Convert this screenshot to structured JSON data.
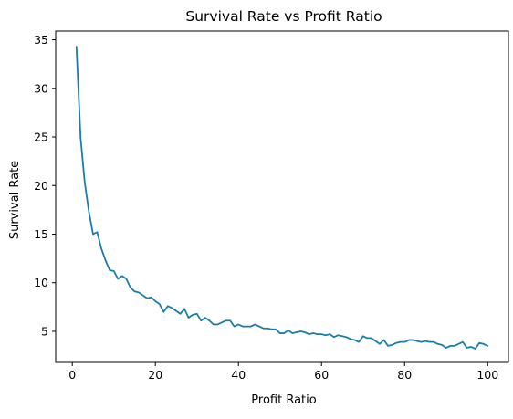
{
  "chart_data": {
    "type": "line",
    "title": "Survival Rate vs Profit Ratio",
    "xlabel": "Profit Ratio",
    "ylabel": "Survival Rate",
    "xlim": [
      -4.0,
      105.0
    ],
    "ylim": [
      1.8,
      35.9
    ],
    "xticks": [
      0,
      20,
      40,
      60,
      80,
      100
    ],
    "yticks": [
      5,
      10,
      15,
      20,
      25,
      30,
      35
    ],
    "grid": false,
    "legend": "none",
    "series": [
      {
        "color": "#1a7ea8",
        "x": [
          1,
          2,
          3,
          4,
          5,
          6,
          7,
          8,
          9,
          10,
          11,
          12,
          13,
          14,
          15,
          16,
          17,
          18,
          19,
          20,
          21,
          22,
          23,
          24,
          25,
          26,
          27,
          28,
          29,
          30,
          31,
          32,
          33,
          34,
          35,
          36,
          37,
          38,
          39,
          40,
          41,
          42,
          43,
          44,
          45,
          46,
          47,
          48,
          49,
          50,
          51,
          52,
          53,
          54,
          55,
          56,
          57,
          58,
          59,
          60,
          61,
          62,
          63,
          64,
          65,
          66,
          67,
          68,
          69,
          70,
          71,
          72,
          73,
          74,
          75,
          76,
          77,
          78,
          79,
          80,
          81,
          82,
          83,
          84,
          85,
          86,
          87,
          88,
          89,
          90,
          91,
          92,
          93,
          94,
          95,
          96,
          97,
          98,
          99,
          100
        ],
        "y": [
          34.3,
          24.9,
          20.3,
          17.3,
          15.0,
          15.2,
          13.5,
          12.3,
          11.3,
          11.2,
          10.4,
          10.7,
          10.4,
          9.5,
          9.1,
          9.0,
          8.7,
          8.4,
          8.5,
          8.1,
          7.8,
          7.0,
          7.6,
          7.4,
          7.1,
          6.8,
          7.3,
          6.4,
          6.7,
          6.8,
          6.1,
          6.4,
          6.1,
          5.7,
          5.7,
          5.9,
          6.1,
          6.1,
          5.5,
          5.7,
          5.5,
          5.5,
          5.5,
          5.7,
          5.5,
          5.3,
          5.3,
          5.2,
          5.2,
          4.8,
          4.8,
          5.1,
          4.8,
          4.9,
          5.0,
          4.9,
          4.7,
          4.8,
          4.7,
          4.7,
          4.6,
          4.7,
          4.4,
          4.6,
          4.5,
          4.4,
          4.2,
          4.1,
          3.9,
          4.5,
          4.3,
          4.3,
          4.0,
          3.7,
          4.1,
          3.5,
          3.6,
          3.8,
          3.9,
          3.9,
          4.1,
          4.1,
          4.0,
          3.9,
          4.0,
          3.9,
          3.9,
          3.7,
          3.6,
          3.3,
          3.5,
          3.5,
          3.7,
          3.9,
          3.3,
          3.4,
          3.2,
          3.8,
          3.7,
          3.5
        ]
      }
    ]
  }
}
